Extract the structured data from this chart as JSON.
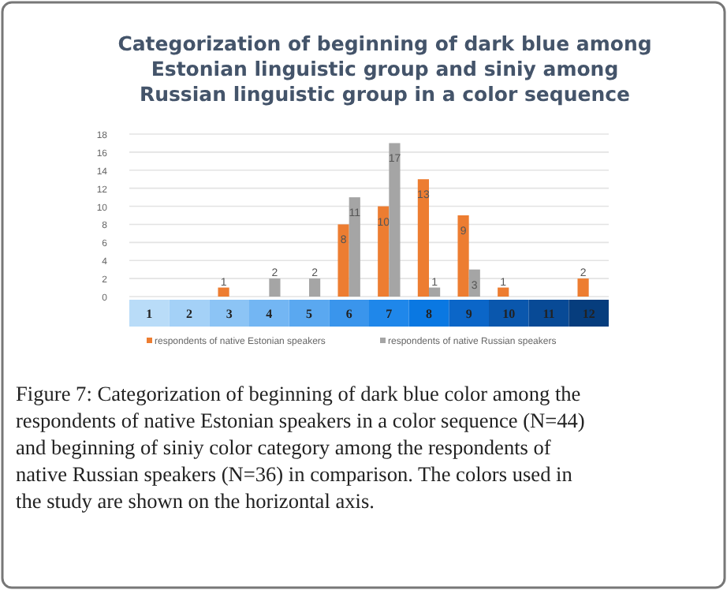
{
  "chart_data": {
    "type": "bar",
    "title": "Categorization of beginning of dark blue among Estonian linguistic group and siniy among Russian linguistic group in a color sequence",
    "categories": [
      "1",
      "2",
      "3",
      "4",
      "5",
      "6",
      "7",
      "8",
      "9",
      "10",
      "11",
      "12"
    ],
    "series": [
      {
        "name": "respondents of native Estonian speakers",
        "color": "#ed7d31",
        "values": [
          0,
          0,
          1,
          0,
          0,
          8,
          10,
          13,
          9,
          1,
          0,
          2
        ],
        "value_labels": [
          null,
          null,
          "1",
          null,
          null,
          "8",
          "10",
          "13",
          "9",
          "1",
          null,
          "2"
        ]
      },
      {
        "name": "respondents of native Russian speakers",
        "color": "#a5a5a5",
        "values": [
          0,
          0,
          0,
          2,
          2,
          11,
          17,
          1,
          3,
          0,
          0,
          0
        ],
        "value_labels": [
          null,
          null,
          null,
          "2",
          "2",
          "11",
          "17",
          "1",
          "3",
          null,
          null,
          null
        ]
      }
    ],
    "ylim": [
      0,
      18
    ],
    "yticks": [
      0,
      2,
      4,
      6,
      8,
      10,
      12,
      14,
      16,
      18
    ],
    "grid": "y",
    "legend": "bottom",
    "annotations": [
      "Figure 7: Categorization of beginning of dark blue color among the respondents of native Estonian speakers in a color sequence (N=44) and beginning of siniy color category among the respondents of native Russian speakers (N=36) in comparison. The colors used in the study are shown on the horizontal axis."
    ]
  }
}
